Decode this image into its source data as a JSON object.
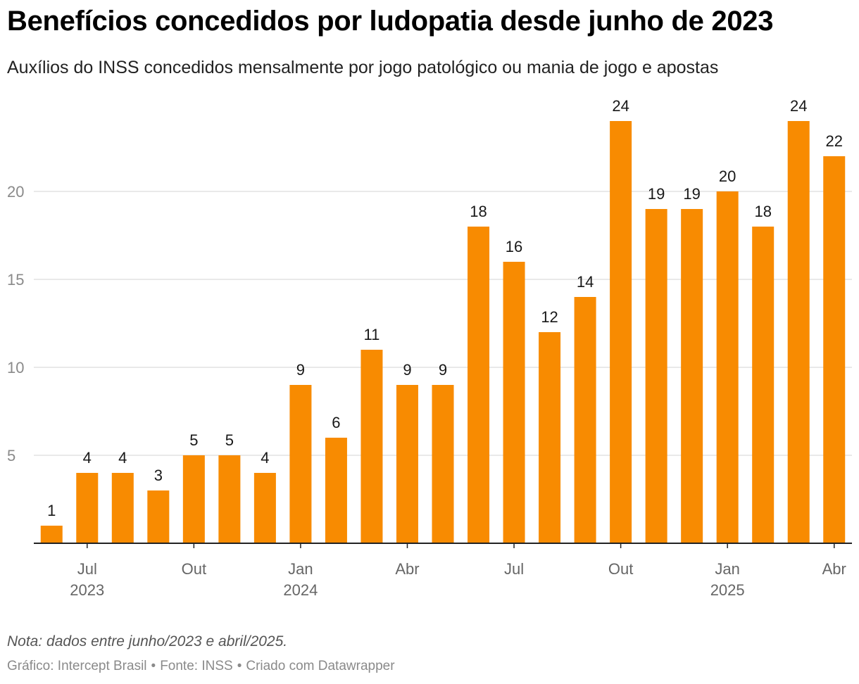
{
  "header": {
    "title": "Benefícios concedidos por ludopatia desde junho de 2023",
    "subtitle": "Auxílios do INSS concedidos mensalmente por jogo patológico ou mania de jogo e apostas"
  },
  "footer": {
    "note": "Nota: dados entre junho/2023 e abril/2025.",
    "credit_chart": "Gráfico: Intercept Brasil",
    "credit_source": "Fonte: INSS",
    "credit_tool": "Criado com Datawrapper",
    "separator": "•"
  },
  "colors": {
    "bar": "#f88b01",
    "grid": "#e2e2e2",
    "axis": "#222222",
    "tick_label": "#8a8a8a",
    "x_label": "#666666",
    "data_label": "#181818"
  },
  "chart_data": {
    "type": "bar",
    "title": "Benefícios concedidos por ludopatia desde junho de 2023",
    "xlabel": "",
    "ylabel": "",
    "ylim": [
      0,
      25
    ],
    "y_ticks": [
      5,
      10,
      15,
      20
    ],
    "grid": true,
    "categories": [
      "2023-06",
      "2023-07",
      "2023-08",
      "2023-09",
      "2023-10",
      "2023-11",
      "2023-12",
      "2024-01",
      "2024-02",
      "2024-03",
      "2024-04",
      "2024-05",
      "2024-06",
      "2024-07",
      "2024-08",
      "2024-09",
      "2024-10",
      "2024-11",
      "2024-12",
      "2025-01",
      "2025-02",
      "2025-03",
      "2025-04"
    ],
    "values": [
      1,
      4,
      4,
      3,
      5,
      5,
      4,
      9,
      6,
      11,
      9,
      9,
      18,
      16,
      12,
      14,
      24,
      19,
      19,
      20,
      18,
      24,
      22
    ],
    "x_ticks": [
      {
        "index": 1,
        "label": "Jul",
        "year": "2023"
      },
      {
        "index": 4,
        "label": "Out",
        "year": ""
      },
      {
        "index": 7,
        "label": "Jan",
        "year": "2024"
      },
      {
        "index": 10,
        "label": "Abr",
        "year": ""
      },
      {
        "index": 13,
        "label": "Jul",
        "year": ""
      },
      {
        "index": 16,
        "label": "Out",
        "year": ""
      },
      {
        "index": 19,
        "label": "Jan",
        "year": "2025"
      },
      {
        "index": 22,
        "label": "Abr",
        "year": ""
      }
    ]
  }
}
